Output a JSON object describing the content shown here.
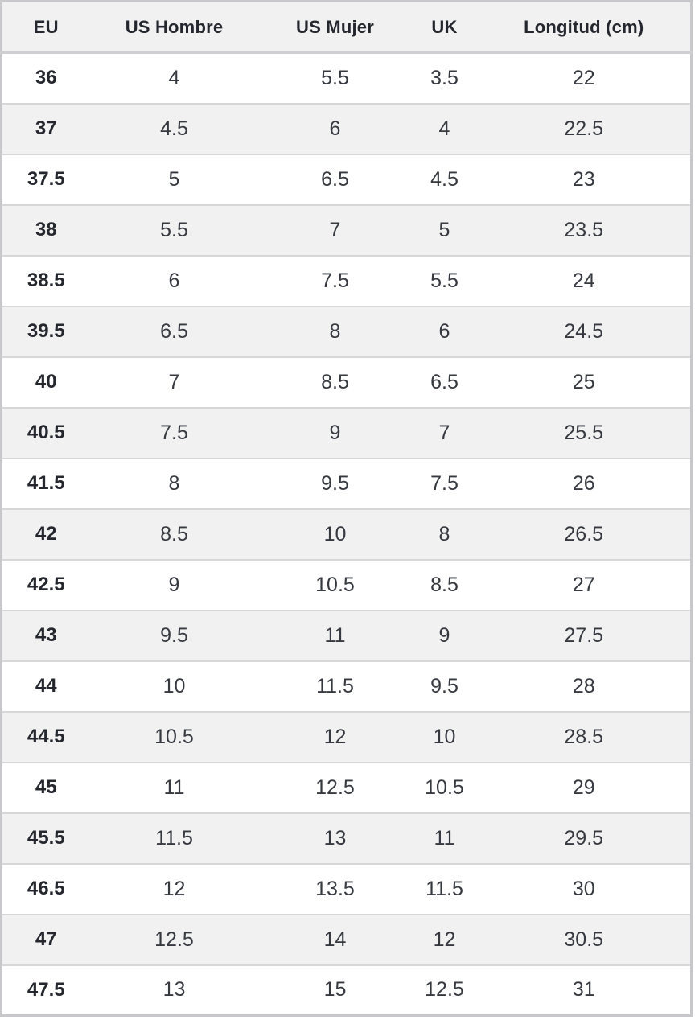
{
  "chart_data": {
    "type": "table",
    "columns": [
      "EU",
      "US Hombre",
      "US Mujer",
      "UK",
      "Longitud (cm)"
    ],
    "rows": [
      [
        "36",
        "4",
        "5.5",
        "3.5",
        "22"
      ],
      [
        "37",
        "4.5",
        "6",
        "4",
        "22.5"
      ],
      [
        "37.5",
        "5",
        "6.5",
        "4.5",
        "23"
      ],
      [
        "38",
        "5.5",
        "7",
        "5",
        "23.5"
      ],
      [
        "38.5",
        "6",
        "7.5",
        "5.5",
        "24"
      ],
      [
        "39.5",
        "6.5",
        "8",
        "6",
        "24.5"
      ],
      [
        "40",
        "7",
        "8.5",
        "6.5",
        "25"
      ],
      [
        "40.5",
        "7.5",
        "9",
        "7",
        "25.5"
      ],
      [
        "41.5",
        "8",
        "9.5",
        "7.5",
        "26"
      ],
      [
        "42",
        "8.5",
        "10",
        "8",
        "26.5"
      ],
      [
        "42.5",
        "9",
        "10.5",
        "8.5",
        "27"
      ],
      [
        "43",
        "9.5",
        "11",
        "9",
        "27.5"
      ],
      [
        "44",
        "10",
        "11.5",
        "9.5",
        "28"
      ],
      [
        "44.5",
        "10.5",
        "12",
        "10",
        "28.5"
      ],
      [
        "45",
        "11",
        "12.5",
        "10.5",
        "29"
      ],
      [
        "45.5",
        "11.5",
        "13",
        "11",
        "29.5"
      ],
      [
        "46.5",
        "12",
        "13.5",
        "11.5",
        "30"
      ],
      [
        "47",
        "12.5",
        "14",
        "12",
        "30.5"
      ],
      [
        "47.5",
        "13",
        "15",
        "12.5",
        "31"
      ]
    ],
    "layout": {
      "zebra_striping": true,
      "first_data_row_background": "white",
      "bold_first_column": true
    }
  },
  "colors": {
    "header_bg": "#f1f1f2",
    "row_alt_bg": "#f1f1f2",
    "header_text": "#24272d",
    "cell_text": "#36393f",
    "border_outer": "#c8c8cb",
    "border_header": "#cfcfd2",
    "border_row": "#d7d7d9"
  }
}
